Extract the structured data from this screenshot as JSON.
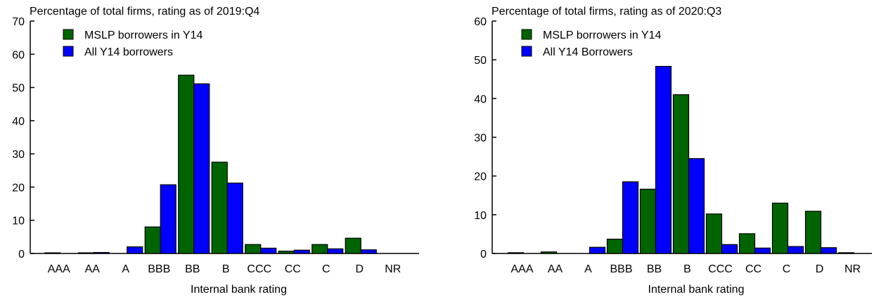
{
  "chart_data": [
    {
      "type": "bar",
      "subtitle": "Percentage of total firms, rating as of 2019:Q4",
      "xlabel": "Internal bank rating",
      "categories": [
        "AAA",
        "AA",
        "A",
        "BBB",
        "BB",
        "B",
        "CCC",
        "CC",
        "C",
        "D",
        "NR"
      ],
      "ylim": [
        0,
        70
      ],
      "yticks": [
        0,
        10,
        20,
        30,
        40,
        50,
        60,
        70
      ],
      "legend_position": "top-left",
      "series": [
        {
          "name": "MSLP borrowers in Y14",
          "color": "#006400",
          "values": [
            0.2,
            0.2,
            0,
            8,
            53.7,
            27.5,
            2.7,
            0.7,
            2.7,
            4.6,
            0
          ]
        },
        {
          "name": "All Y14 borrowers",
          "color": "#0000ff",
          "values": [
            0,
            0.3,
            2,
            20.7,
            51.1,
            21.2,
            1.6,
            1,
            1.4,
            1.1,
            0
          ]
        }
      ]
    },
    {
      "type": "bar",
      "subtitle": "Percentage of total firms, rating as of 2020:Q3",
      "xlabel": "Internal bank rating",
      "categories": [
        "AAA",
        "AA",
        "A",
        "BBB",
        "BB",
        "B",
        "CCC",
        "CC",
        "C",
        "D",
        "NR"
      ],
      "ylim": [
        0,
        60
      ],
      "yticks": [
        0,
        10,
        20,
        30,
        40,
        50,
        60
      ],
      "legend_position": "top-left",
      "series": [
        {
          "name": "MSLP borrowers in Y14",
          "color": "#006400",
          "values": [
            0.2,
            0.4,
            0,
            3.7,
            16.6,
            41,
            10.2,
            5.1,
            13,
            10.9,
            0.2
          ]
        },
        {
          "name": "All Y14 Borrowers",
          "color": "#0000ff",
          "values": [
            0,
            0,
            1.6,
            18.5,
            48.3,
            24.5,
            2.3,
            1.4,
            1.8,
            1.5,
            0
          ]
        }
      ]
    }
  ]
}
